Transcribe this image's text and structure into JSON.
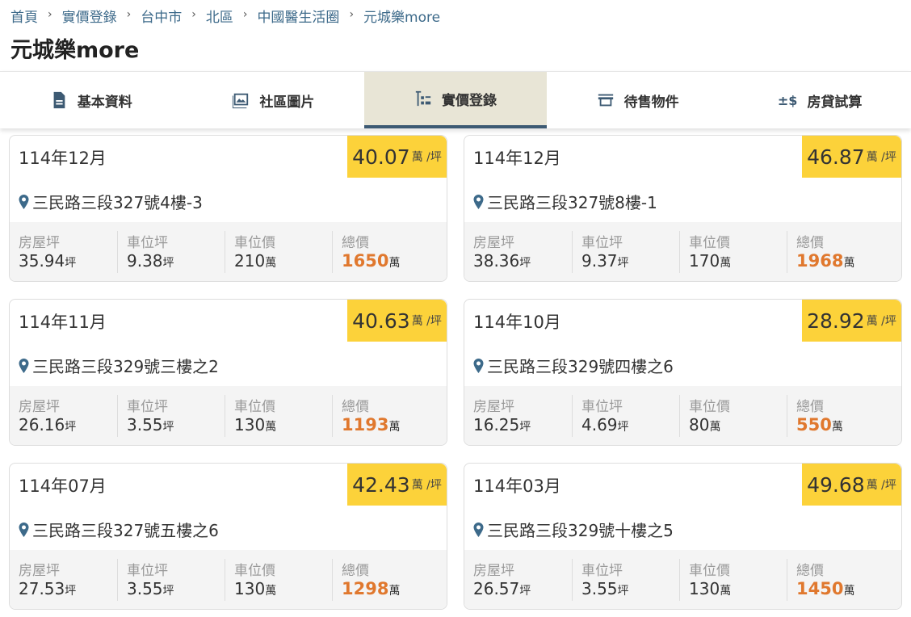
{
  "breadcrumb": [
    "首頁",
    "實價登錄",
    "台中市",
    "北區",
    "中國醫生活圈",
    "元城樂more"
  ],
  "title": "元城樂more",
  "tabs": [
    {
      "label": "基本資料",
      "icon": "document-icon"
    },
    {
      "label": "社區圖片",
      "icon": "image-icon"
    },
    {
      "label": "實價登錄",
      "icon": "price-list-icon",
      "active": true
    },
    {
      "label": "待售物件",
      "icon": "store-icon"
    },
    {
      "label": "房貸試算",
      "icon": "plus-minus-dollar-icon"
    }
  ],
  "labels": {
    "house": "房屋坪",
    "parking_area": "車位坪",
    "parking_price": "車位價",
    "total": "總價",
    "unit_ping": "坪",
    "unit_wan": "萬",
    "per_ping": "萬 /坪"
  },
  "colors": {
    "badge": "#fcd23a",
    "total": "#e0782e",
    "accent": "#3d5a73"
  },
  "records": [
    {
      "date": "114年12月",
      "price_per_ping": "40.07",
      "address": "三民路三段327號4樓-3",
      "house": "35.94",
      "parking_area": "9.38",
      "parking_price": "210",
      "total": "1650"
    },
    {
      "date": "114年12月",
      "price_per_ping": "46.87",
      "address": "三民路三段327號8樓-1",
      "house": "38.36",
      "parking_area": "9.37",
      "parking_price": "170",
      "total": "1968"
    },
    {
      "date": "114年11月",
      "price_per_ping": "40.63",
      "address": "三民路三段329號三樓之2",
      "house": "26.16",
      "parking_area": "3.55",
      "parking_price": "130",
      "total": "1193"
    },
    {
      "date": "114年10月",
      "price_per_ping": "28.92",
      "address": "三民路三段329號四樓之6",
      "house": "16.25",
      "parking_area": "4.69",
      "parking_price": "80",
      "total": "550"
    },
    {
      "date": "114年07月",
      "price_per_ping": "42.43",
      "address": "三民路三段327號五樓之6",
      "house": "27.53",
      "parking_area": "3.55",
      "parking_price": "130",
      "total": "1298"
    },
    {
      "date": "114年03月",
      "price_per_ping": "49.68",
      "address": "三民路三段329號十樓之5",
      "house": "26.57",
      "parking_area": "3.55",
      "parking_price": "130",
      "total": "1450"
    }
  ]
}
